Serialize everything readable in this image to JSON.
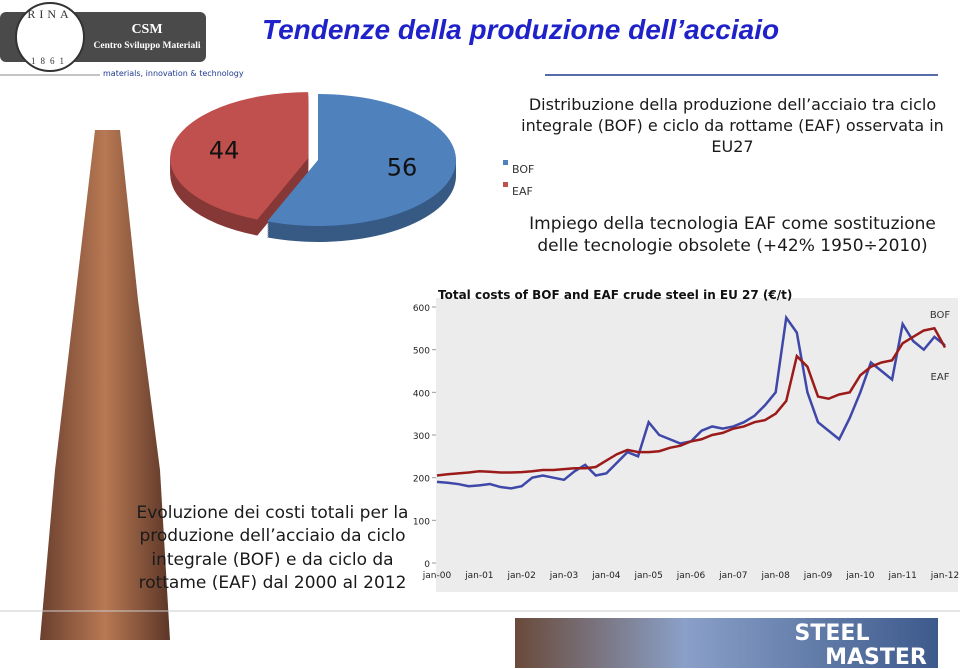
{
  "header": {
    "title": "Tendenze della produzione dell’acciaio",
    "logo_seal": "RINA",
    "logo_year": "1861",
    "logo_name": "CSM",
    "logo_subtitle": "Centro Sviluppo Materiali",
    "tagline": "materials, innovation & technology"
  },
  "captions": {
    "eaf": "Impiego della tecnologia EAF come sostituzione delle tecnologie obsolete (+42% 1950÷2010)",
    "costs": "Evoluzione dei costi totali per la produzione dell’acciaio da ciclo integrale (BOF) e da ciclo da rottame (EAF) dal 2000 al 2012"
  },
  "footer": {
    "brand_line1": "STEEL",
    "brand_line2": "MASTER"
  },
  "chart_data": [
    {
      "type": "pie",
      "title": "Distribuzione della produzione dell’acciaio tra ciclo integrale (BOF) e ciclo da rottame (EAF) osservata in EU27",
      "categories": [
        "BOF",
        "EAF"
      ],
      "values": [
        56,
        44
      ],
      "colors": [
        "#4f81bd",
        "#c0504d"
      ]
    },
    {
      "type": "line",
      "title": "Total costs of BOF and EAF crude steel in EU 27 (€/t)",
      "categories": [
        "jan-00",
        null,
        null,
        null,
        "jan-01",
        null,
        null,
        null,
        "jan-02",
        null,
        null,
        null,
        "jan-03",
        null,
        null,
        null,
        "jan-04",
        null,
        null,
        null,
        "jan-05",
        null,
        null,
        null,
        "jan-06",
        null,
        null,
        null,
        "jan-07",
        null,
        null,
        null,
        "jan-08",
        null,
        null,
        null,
        "jan-09",
        null,
        null,
        null,
        "jan-10",
        null,
        null,
        null,
        "jan-11",
        null,
        null,
        null,
        "jan-12"
      ],
      "series": [
        {
          "name": "BOF",
          "color": "#3f48a8",
          "values": [
            190,
            188,
            185,
            180,
            182,
            185,
            178,
            175,
            180,
            200,
            205,
            200,
            195,
            215,
            230,
            205,
            210,
            235,
            260,
            250,
            330,
            300,
            290,
            280,
            285,
            310,
            320,
            315,
            320,
            330,
            345,
            370,
            400,
            575,
            540,
            400,
            330,
            310,
            290,
            340,
            400,
            470,
            450,
            430,
            560,
            520,
            500,
            530,
            510
          ]
        },
        {
          "name": "EAF",
          "color": "#9b1b1b",
          "values": [
            205,
            208,
            210,
            212,
            215,
            214,
            212,
            212,
            213,
            215,
            218,
            218,
            220,
            222,
            222,
            225,
            240,
            255,
            265,
            260,
            260,
            262,
            270,
            275,
            285,
            290,
            300,
            305,
            315,
            320,
            330,
            335,
            350,
            380,
            485,
            460,
            390,
            385,
            395,
            400,
            440,
            460,
            470,
            475,
            515,
            530,
            545,
            550,
            505
          ]
        }
      ],
      "ylim": [
        0,
        600
      ],
      "yticks": [
        0,
        100,
        200,
        300,
        400,
        500,
        600
      ],
      "plot_background": "#ececec"
    }
  ]
}
